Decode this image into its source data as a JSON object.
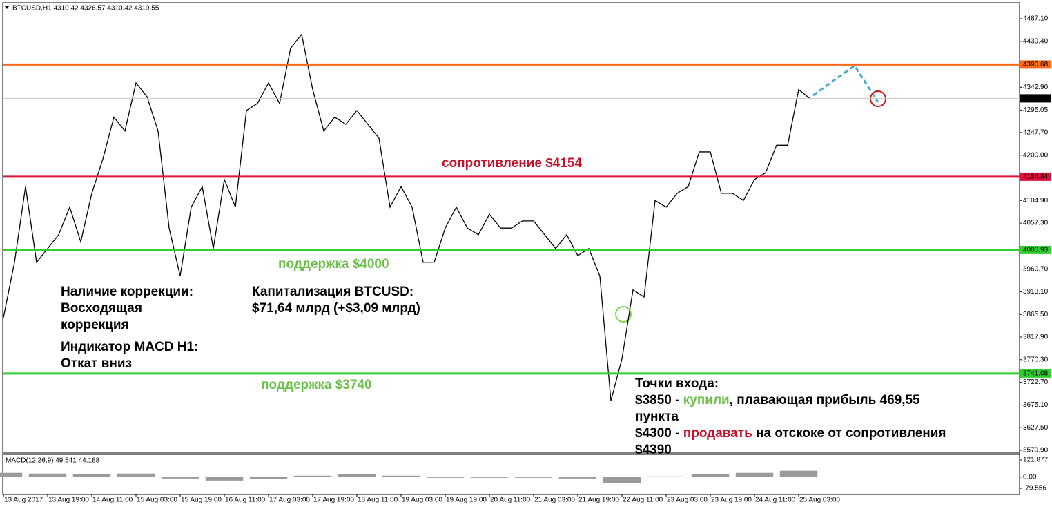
{
  "header": "BTCUSD,H1 4310.42 4326.57 4310.42 4319.55",
  "chart_data": [
    {
      "type": "line",
      "color": "#000000",
      "x": [
        0,
        4,
        8,
        12,
        16,
        20,
        24,
        28,
        32,
        36,
        40,
        44,
        48,
        52,
        56,
        60,
        64,
        68,
        72,
        76,
        80,
        84,
        88,
        92,
        96,
        100,
        104,
        108,
        112,
        116,
        120,
        124,
        128,
        132,
        136,
        140,
        144,
        148,
        152,
        156,
        160,
        164,
        168,
        172,
        176,
        180,
        184,
        188,
        192,
        196,
        200,
        204,
        208,
        212,
        216,
        220,
        224,
        228,
        232,
        236,
        240,
        244,
        248,
        252,
        256,
        260,
        264,
        268,
        272,
        276,
        280,
        284,
        288,
        292
      ],
      "values": [
        3859,
        3975,
        4134,
        3975,
        4004,
        4033,
        4091,
        4018,
        4120,
        4192,
        4280,
        4251,
        4352,
        4323,
        4251,
        4047,
        3946,
        4091,
        4134,
        4004,
        4149,
        4091,
        4294,
        4309,
        4352,
        4309,
        4425,
        4454,
        4338,
        4251,
        4280,
        4265,
        4294,
        4265,
        4236,
        4091,
        4134,
        4091,
        3975,
        3975,
        4047,
        4091,
        4047,
        4033,
        4076,
        4047,
        4047,
        4062,
        4062,
        4033,
        4004,
        4033,
        3989,
        4004,
        3946,
        3684,
        3772,
        3917,
        3902,
        4105,
        4091,
        4120,
        4134,
        4207,
        4207,
        4120,
        4120,
        4105,
        4149,
        4163,
        4221,
        4221,
        4338,
        4319.55
      ],
      "xlim": [
        0,
        368
      ],
      "ylim": [
        3575.5,
        4519.0
      ],
      "xticks": [
        {
          "value": 0,
          "label": "13 Aug 2017"
        },
        {
          "value": 16,
          "label": "13 Aug 19:00"
        },
        {
          "value": 32,
          "label": "14 Aug 11:00"
        },
        {
          "value": 48,
          "label": "15 Aug 03:00"
        },
        {
          "value": 64,
          "label": "15 Aug 19:00"
        },
        {
          "value": 80,
          "label": "16 Aug 11:00"
        },
        {
          "value": 96,
          "label": "17 Aug 03:00"
        },
        {
          "value": 112,
          "label": "17 Aug 19:00"
        },
        {
          "value": 128,
          "label": "18 Aug 11:00"
        },
        {
          "value": 144,
          "label": "19 Aug 03:00"
        },
        {
          "value": 160,
          "label": "19 Aug 19:00"
        },
        {
          "value": 176,
          "label": "20 Aug 11:00"
        },
        {
          "value": 192,
          "label": "21 Aug 03:00"
        },
        {
          "value": 208,
          "label": "21 Aug 19:00"
        },
        {
          "value": 224,
          "label": "22 Aug 11:00"
        },
        {
          "value": 240,
          "label": "23 Aug 03:00"
        },
        {
          "value": 256,
          "label": "23 Aug 19:00"
        },
        {
          "value": 272,
          "label": "24 Aug 11:00"
        },
        {
          "value": 288,
          "label": "25 Aug 03:00"
        }
      ],
      "yticks": [
        {
          "value": 4487.1,
          "label": "4487.10"
        },
        {
          "value": 4439.4,
          "label": "4439.40"
        },
        {
          "value": 4342.9,
          "label": "4342.90"
        },
        {
          "value": 4295.05,
          "label": "4295.05"
        },
        {
          "value": 4247.7,
          "label": "4247.70"
        },
        {
          "value": 4200,
          "label": "4200.00"
        },
        {
          "value": 4104.9,
          "label": "4104.90"
        },
        {
          "value": 4057.3,
          "label": "4057.30"
        },
        {
          "value": 3960.7,
          "label": "3960.70"
        },
        {
          "value": 3913.1,
          "label": "3913.10"
        },
        {
          "value": 3865.5,
          "label": "3865.50"
        },
        {
          "value": 3817.9,
          "label": "3817.90"
        },
        {
          "value": 3770.3,
          "label": "3770.30"
        },
        {
          "value": 3722.7,
          "label": "3722.70"
        },
        {
          "value": 3675.1,
          "label": "3675.10"
        },
        {
          "value": 3627.5,
          "label": "3627.50"
        },
        {
          "value": 3579.9,
          "label": "3579.90"
        }
      ],
      "levels": [
        {
          "value": 4390.68,
          "color": "#ff6a1a"
        },
        {
          "value": 4154.84,
          "color": "#dc143c"
        },
        {
          "value": 4000.93,
          "color": "#32cd32"
        },
        {
          "value": 3741.08,
          "color": "#32cd32"
        }
      ],
      "last_value": 4319.55
    },
    {
      "type": "bar",
      "title": "MACD(12,26,9) 49.541 44.188",
      "color": "#9a9a9a",
      "x": [
        0,
        16,
        32,
        48,
        64,
        80,
        96,
        112,
        128,
        144,
        160,
        176,
        192,
        208,
        224,
        240,
        256,
        272,
        288
      ],
      "values": [
        30,
        25,
        20,
        25,
        -10,
        -25,
        -15,
        10,
        20,
        10,
        -5,
        -5,
        -5,
        -10,
        -45,
        5,
        20,
        30,
        45
      ],
      "xlim": [
        0,
        368
      ],
      "ylim": [
        -113.9,
        151.4
      ],
      "yticks": [
        121.877,
        {
          "value": 0,
          "label": "0.00"
        },
        -79.556
      ]
    }
  ],
  "annotations": [
    {
      "color": "#c0142c",
      "lines": [
        [
          {
            "text": "сопротивление $4154"
          }
        ]
      ]
    },
    {
      "color": "#6cc04a",
      "lines": [
        [
          {
            "text": "поддержка $4000"
          }
        ]
      ]
    },
    {
      "color": "#6cc04a",
      "lines": [
        [
          {
            "text": "поддержка $3740"
          }
        ]
      ]
    },
    {
      "color": "#000000",
      "lines": [
        [
          {
            "text": "Наличие коррекции:"
          }
        ],
        [
          {
            "text": "Восходящая"
          }
        ],
        [
          {
            "text": "коррекция"
          }
        ]
      ]
    },
    {
      "color": "#000000",
      "lines": [
        [
          {
            "text": "Индикатор MACD H1:"
          }
        ],
        [
          {
            "text": "Откат вниз"
          }
        ]
      ]
    },
    {
      "color": "#000000",
      "lines": [
        [
          {
            "text": "Капитализация BTCUSD:"
          }
        ],
        [
          {
            "text": "$71,64 млрд (+$3,09 млрд)"
          }
        ]
      ]
    },
    {
      "color": "#000000",
      "lines": [
        [
          {
            "text": "Точки входа:"
          }
        ],
        [
          {
            "text": "$3850 - "
          },
          {
            "text": "купили",
            "color": "#6cc04a"
          },
          {
            "text": ", плавающая прибыль 469,55"
          }
        ],
        [
          {
            "text": "пункта"
          }
        ],
        [
          {
            "text": "$4300 - "
          },
          {
            "text": "продавать",
            "color": "#c0142c"
          },
          {
            "text": " на отскоке от сопротивления"
          }
        ],
        [
          {
            "text": "$4390"
          }
        ]
      ]
    }
  ]
}
